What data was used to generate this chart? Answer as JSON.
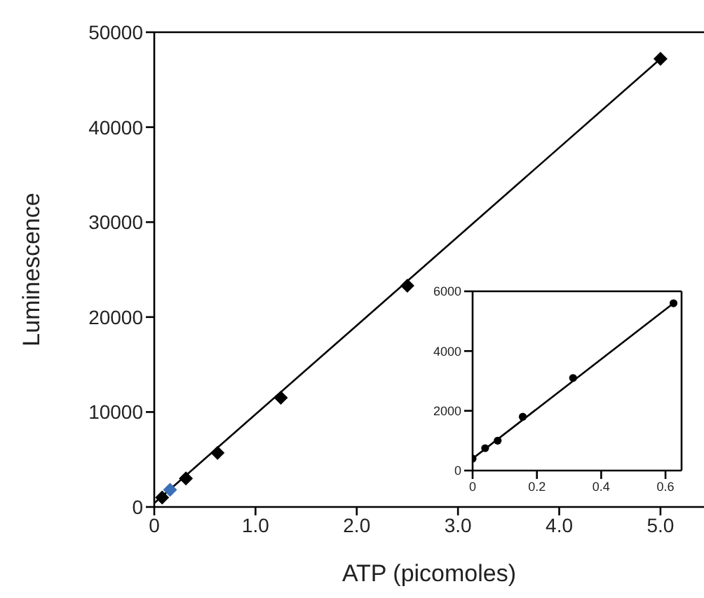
{
  "chart_data": [
    {
      "type": "scatter",
      "xlabel": "ATP (picomoles)",
      "ylabel": "Luminescence",
      "xlim": [
        0,
        5.43
      ],
      "ylim": [
        0,
        50000
      ],
      "xticks": [
        0,
        {
          "value": 1,
          "label": "1.0"
        },
        {
          "value": 2,
          "label": "2.0"
        },
        {
          "value": 3,
          "label": "3.0"
        },
        {
          "value": 4,
          "label": "4.0"
        },
        {
          "value": 5,
          "label": "5.0"
        }
      ],
      "yticks": [
        0,
        10000,
        20000,
        30000,
        40000,
        50000
      ],
      "marker": "diamond",
      "grid": false,
      "series": [
        {
          "type": "line",
          "color": "#000000",
          "x": [
            0,
            5
          ],
          "values": [
            400,
            47200
          ],
          "marker": "none"
        },
        {
          "type": "scatter",
          "color": "#000000",
          "colors": [
            "#000000",
            "#3b6fb6",
            "#000000",
            "#000000",
            "#000000",
            "#000000",
            "#000000"
          ],
          "x": [
            0.078,
            0.156,
            0.3125,
            0.625,
            1.25,
            2.5,
            5
          ],
          "values": [
            1000,
            1800,
            3000,
            5700,
            11500,
            23300,
            47200
          ]
        }
      ]
    },
    {
      "type": "scatter",
      "xlim": [
        0,
        0.65
      ],
      "ylim": [
        0,
        6000
      ],
      "xticks": [
        0,
        0.2,
        0.4,
        0.6
      ],
      "yticks": [
        0,
        2000,
        4000,
        6000
      ],
      "marker": "circle",
      "grid": false,
      "series": [
        {
          "type": "line",
          "color": "#000000",
          "x": [
            0,
            0.625
          ],
          "values": [
            400,
            5600
          ],
          "marker": "none"
        },
        {
          "type": "scatter",
          "color": "#000000",
          "x": [
            0,
            0.039,
            0.078,
            0.156,
            0.3125,
            0.625
          ],
          "values": [
            400,
            750,
            1000,
            1800,
            3100,
            5600
          ]
        }
      ]
    }
  ]
}
